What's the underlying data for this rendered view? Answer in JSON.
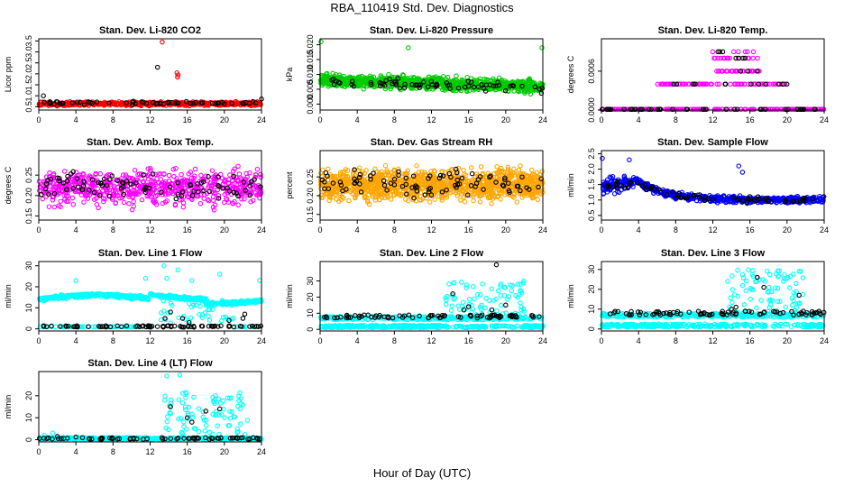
{
  "main_title": "RBA_110419  Std. Dev. Diagnostics",
  "x_axis_title": "Hour of Day (UTC)",
  "colors": {
    "red": "#ff0000",
    "green": "#00cc00",
    "magenta": "#ff00ff",
    "orange": "#ffa500",
    "blue": "#0000ff",
    "cyan": "#00ffff",
    "black": "#000000"
  },
  "chart_data": [
    {
      "type": "scatter",
      "title": "Stan. Dev. Li-820 CO2",
      "ylabel": "Licor ppm",
      "xlim": [
        0,
        24
      ],
      "ylim": [
        0.35,
        3.6
      ],
      "xticks": [
        "0",
        "4",
        "8",
        "12",
        "16",
        "20",
        "24"
      ],
      "yticks": [
        "0.5",
        "1.0",
        "1.5",
        "2.0",
        "2.5",
        "3.0",
        "3.5"
      ],
      "series": [
        {
          "color": "red",
          "density": 520,
          "band": [
            0.52,
            0.75
          ],
          "extra": [
            [
              13.3,
              3.45
            ],
            [
              14.9,
              2.05
            ],
            [
              14.95,
              1.85
            ],
            [
              15.0,
              1.95
            ]
          ]
        },
        {
          "color": "black",
          "density": 60,
          "band": [
            0.55,
            0.8
          ],
          "extra": [
            [
              12.8,
              2.3
            ],
            [
              0.5,
              1.0
            ],
            [
              24.0,
              0.85
            ]
          ]
        }
      ]
    },
    {
      "type": "scatter",
      "title": "Stan. Dev. Li-820 Pressure",
      "ylabel": "kPa",
      "xlim": [
        0,
        24
      ],
      "ylim": [
        -0.002,
        0.022
      ],
      "xticks": [
        "0",
        "4",
        "8",
        "12",
        "16",
        "20",
        "24"
      ],
      "yticks": [
        "0.000",
        "0.005",
        "0.010",
        "0.015",
        "0.020"
      ],
      "series": [
        {
          "color": "green",
          "density": 900,
          "band": [
            0.005,
            0.011
          ],
          "trend": -0.002,
          "extra": [
            [
              0.1,
              0.021
            ],
            [
              9.5,
              0.019
            ],
            [
              23.9,
              0.019
            ]
          ]
        },
        {
          "color": "black",
          "density": 70,
          "band": [
            0.005,
            0.01
          ],
          "trend": -0.002
        }
      ]
    },
    {
      "type": "scatter",
      "title": "Stan. Dev. Li-820 Temp.",
      "ylabel": "degrees C",
      "xlim": [
        0,
        24
      ],
      "ylim": [
        0,
        0.0011
      ],
      "xticks": [
        "0",
        "4",
        "8",
        "12",
        "16",
        "20",
        "24"
      ],
      "yticks": [
        "0.0000",
        "0.0006"
      ],
      "levels": [
        0,
        0.0004,
        0.0006,
        0.0008,
        0.0009
      ],
      "series": [
        {
          "color": "magenta",
          "density": 420,
          "kind": "levels"
        },
        {
          "color": "black",
          "density": 70,
          "kind": "levels"
        }
      ]
    },
    {
      "type": "scatter",
      "title": "Stan. Dev. Amb. Box Temp.",
      "ylabel": "degrees C",
      "xlim": [
        0,
        24
      ],
      "ylim": [
        0.14,
        0.31
      ],
      "xticks": [
        "0",
        "4",
        "8",
        "12",
        "16",
        "20",
        "24"
      ],
      "yticks": [
        "0.15",
        "0.20",
        "0.25"
      ],
      "series": [
        {
          "color": "magenta",
          "density": 650,
          "band": [
            0.16,
            0.28
          ]
        },
        {
          "color": "black",
          "density": 90,
          "band": [
            0.17,
            0.27
          ]
        }
      ]
    },
    {
      "type": "scatter",
      "title": "Stan. Dev. Gas Stream RH",
      "ylabel": "percent",
      "xlim": [
        0,
        24
      ],
      "ylim": [
        0.135,
        0.32
      ],
      "xticks": [
        "0",
        "4",
        "8",
        "12",
        "16",
        "20",
        "24"
      ],
      "yticks": [
        "0.15",
        "0.20",
        "0.25"
      ],
      "series": [
        {
          "color": "orange",
          "density": 1100,
          "band": [
            0.17,
            0.29
          ]
        },
        {
          "color": "black",
          "density": 90,
          "band": [
            0.18,
            0.28
          ]
        }
      ]
    },
    {
      "type": "scatter",
      "title": "Stan. Dev. Sample Flow",
      "ylabel": "ml/min",
      "xlim": [
        0,
        24
      ],
      "ylim": [
        0.35,
        2.6
      ],
      "xticks": [
        "0",
        "4",
        "8",
        "12",
        "16",
        "20",
        "24"
      ],
      "yticks": [
        "0.5",
        "1.0",
        "1.5",
        "2.0",
        "2.5"
      ],
      "series": [
        {
          "color": "blue",
          "density": 620,
          "kind": "decay",
          "extra": [
            [
              0.1,
              2.35
            ],
            [
              3.0,
              2.3
            ],
            [
              14.8,
              2.1
            ],
            [
              15.2,
              1.9
            ]
          ]
        },
        {
          "color": "black",
          "density": 70,
          "kind": "decay"
        }
      ]
    },
    {
      "type": "scatter",
      "title": "Stan. Dev. Line 1 Flow",
      "ylabel": "ml/min",
      "xlim": [
        0,
        24
      ],
      "ylim": [
        -1,
        32
      ],
      "xticks": [
        "0",
        "4",
        "8",
        "12",
        "16",
        "20",
        "24"
      ],
      "yticks": [
        "0",
        "10",
        "20",
        "30"
      ],
      "series": [
        {
          "color": "cyan",
          "density": 700,
          "kind": "line1",
          "extra": [
            [
              4.0,
              23
            ],
            [
              11.5,
              24
            ],
            [
              13.5,
              30
            ],
            [
              15.0,
              28
            ],
            [
              19.5,
              26
            ],
            [
              23.8,
              23
            ],
            [
              13.8,
              24
            ],
            [
              16.5,
              23
            ]
          ]
        },
        {
          "color": "black",
          "density": 80,
          "kind": "low",
          "low": [
            0.8,
            1.5
          ],
          "extra": [
            [
              13.6,
              5
            ],
            [
              14.2,
              8
            ],
            [
              15.5,
              5
            ],
            [
              16.2,
              3
            ],
            [
              20.5,
              4
            ],
            [
              22.0,
              5
            ],
            [
              22.2,
              7
            ]
          ]
        }
      ]
    },
    {
      "type": "scatter",
      "title": "Stan. Dev. Line 2 Flow",
      "ylabel": "ml/min",
      "xlim": [
        0,
        24
      ],
      "ylim": [
        -1,
        42
      ],
      "xticks": [
        "0",
        "4",
        "8",
        "12",
        "16",
        "20",
        "24"
      ],
      "yticks": [
        "0",
        "10",
        "20",
        "30"
      ],
      "series": [
        {
          "color": "cyan",
          "density": 700,
          "kind": "line2"
        },
        {
          "color": "black",
          "density": 80,
          "kind": "flat8",
          "extra": [
            [
              14.3,
              22
            ],
            [
              15.5,
              12
            ],
            [
              16.0,
              14
            ],
            [
              18.5,
              12
            ],
            [
              19.0,
              40
            ],
            [
              20.0,
              15
            ]
          ]
        }
      ]
    },
    {
      "type": "scatter",
      "title": "Stan. Dev. Line 3 Flow",
      "ylabel": "ml/min",
      "xlim": [
        0,
        24
      ],
      "ylim": [
        -1,
        34
      ],
      "xticks": [
        "0",
        "4",
        "8",
        "12",
        "16",
        "20",
        "24"
      ],
      "yticks": [
        "0",
        "10",
        "20",
        "30"
      ],
      "series": [
        {
          "color": "cyan",
          "density": 700,
          "kind": "line2"
        },
        {
          "color": "black",
          "density": 80,
          "kind": "flat8",
          "extra": [
            [
              14.0,
              10
            ],
            [
              14.5,
              11
            ],
            [
              15.5,
              9
            ],
            [
              16.8,
              26
            ],
            [
              17.5,
              21
            ],
            [
              21.3,
              17
            ],
            [
              23.5,
              8
            ]
          ]
        }
      ]
    },
    {
      "type": "scatter",
      "title": "Stan. Dev. Line 4 (LT) Flow",
      "ylabel": "ml/min",
      "xlim": [
        0,
        24
      ],
      "ylim": [
        -1,
        31
      ],
      "xticks": [
        "0",
        "4",
        "8",
        "12",
        "16",
        "20",
        "24"
      ],
      "yticks": [
        "0",
        "10",
        "20"
      ],
      "series": [
        {
          "color": "cyan",
          "density": 500,
          "kind": "line4",
          "extra": [
            [
              13.8,
              29
            ],
            [
              15.2,
              29.5
            ],
            [
              1.5,
              3
            ],
            [
              0.6,
              2
            ]
          ]
        },
        {
          "color": "black",
          "density": 70,
          "kind": "zero",
          "extra": [
            [
              14.2,
              15
            ],
            [
              16.0,
              10
            ],
            [
              16.5,
              8
            ],
            [
              18.0,
              13
            ],
            [
              19.5,
              14
            ],
            [
              2.0,
              1.5
            ],
            [
              4.0,
              1.2
            ]
          ]
        }
      ]
    }
  ]
}
